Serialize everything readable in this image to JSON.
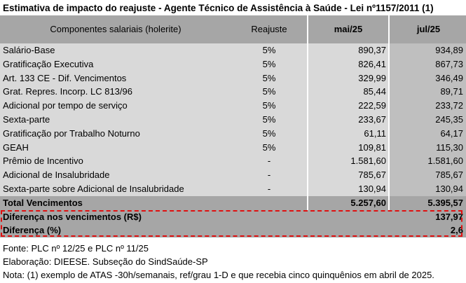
{
  "title": "Estimativa de impacto do reajuste - Agente Técnico de Assistência à Saúde - Lei nº1157/2011 (1)",
  "header": {
    "componentes": "Componentes salariais (holerite)",
    "reajuste": "Reajuste",
    "mai": "mai/25",
    "jul": "jul/25"
  },
  "rows": [
    {
      "label": "Salário-Base",
      "reajuste": "5%",
      "mai": "890,37",
      "jul": "934,89"
    },
    {
      "label": "Gratificação Executiva",
      "reajuste": "5%",
      "mai": "826,41",
      "jul": "867,73"
    },
    {
      "label": "Art. 133 CE - Dif. Vencimentos",
      "reajuste": "5%",
      "mai": "329,99",
      "jul": "346,49"
    },
    {
      "label": "Grat. Repres.  Incorp. LC 813/96",
      "reajuste": "5%",
      "mai": "85,44",
      "jul": "89,71"
    },
    {
      "label": "Adicional por tempo de serviço",
      "reajuste": "5%",
      "mai": "222,59",
      "jul": "233,72"
    },
    {
      "label": "Sexta-parte",
      "reajuste": "5%",
      "mai": "233,67",
      "jul": "245,35"
    },
    {
      "label": "Gratificação por Trabalho Noturno",
      "reajuste": "5%",
      "mai": "61,11",
      "jul": "64,17"
    },
    {
      "label": "GEAH",
      "reajuste": "5%",
      "mai": "109,81",
      "jul": "115,30"
    },
    {
      "label": "Prêmio de Incentivo",
      "reajuste": "-",
      "mai": "1.581,60",
      "jul": "1.581,60"
    },
    {
      "label": "Adicional de Insalubridade",
      "reajuste": "-",
      "mai": "785,67",
      "jul": "785,67"
    },
    {
      "label": "Sexta-parte sobre Adicional de Insalubridade",
      "reajuste": "-",
      "mai": "130,94",
      "jul": "130,94"
    }
  ],
  "total": {
    "label": "Total Vencimentos",
    "mai": "5.257,60",
    "jul": "5.395,57"
  },
  "diferenca_valor": {
    "label": "Diferença nos vencimentos (R$)",
    "value": "137,97"
  },
  "diferenca_pct": {
    "label": "Diferença (%)",
    "value": "2,6"
  },
  "notes": {
    "fonte": "Fonte: PLC nº 12/25 e PLC nº 11/25",
    "elaboracao": "Elaboração: DIEESE. Subseção do SindSaúde-SP",
    "nota": "Nota: (1) exemplo de ATAS -30h/semanais, ref/grau 1-D e que recebia cinco quinquênios em abril de 2025."
  }
}
